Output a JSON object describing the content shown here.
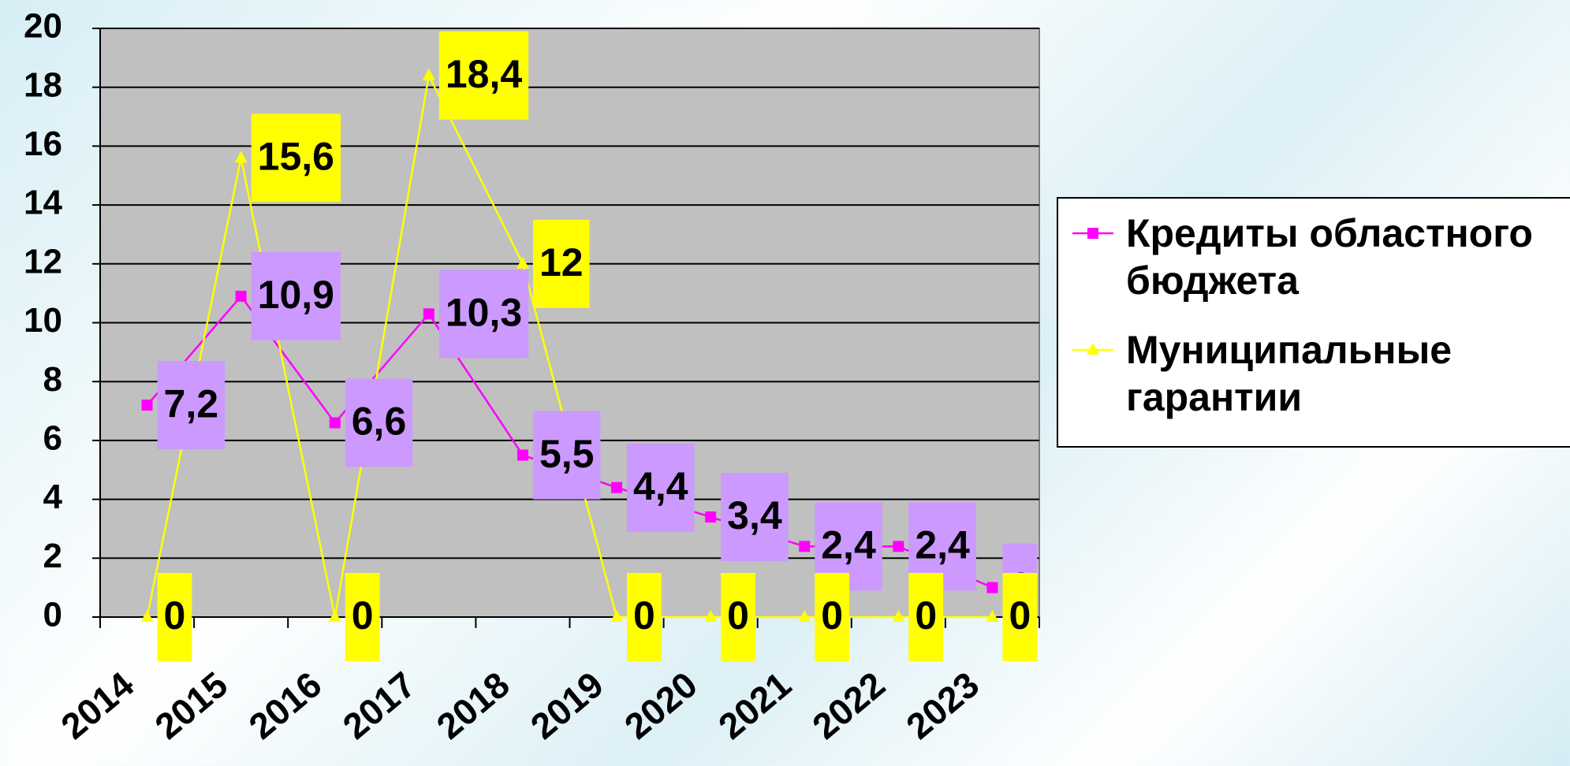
{
  "chart_data": {
    "type": "line",
    "categories": [
      "2014",
      "2015",
      "2016",
      "2017",
      "2018",
      "2019",
      "2020",
      "2021",
      "2022",
      "2023"
    ],
    "series": [
      {
        "name": "Кредиты областного бюджета",
        "color": "#ff00ff",
        "marker": "square",
        "label_color": "#cc99ff",
        "values": [
          7.2,
          10.9,
          6.6,
          10.3,
          5.5,
          4.4,
          3.4,
          2.4,
          2.4,
          1
        ],
        "value_labels": [
          "7,2",
          "10,9",
          "6,6",
          "10,3",
          "5,5",
          "4,4",
          "3,4",
          "2,4",
          "2,4",
          "1"
        ]
      },
      {
        "name": "Муниципальные гарантии",
        "color": "#ffff00",
        "marker": "triangle",
        "label_color": "#ffff00",
        "values": [
          0,
          15.6,
          0,
          18.4,
          12,
          0,
          0,
          0,
          0,
          0
        ],
        "value_labels": [
          "0",
          "15,6",
          "0",
          "18,4",
          "12",
          "0",
          "0",
          "0",
          "0",
          "0"
        ]
      }
    ],
    "ylim": [
      0,
      20
    ],
    "yticks": [
      0,
      2,
      4,
      6,
      8,
      10,
      12,
      14,
      16,
      18,
      20
    ],
    "grid": true,
    "legend": "right",
    "plot_background": "#c0c0c0"
  }
}
